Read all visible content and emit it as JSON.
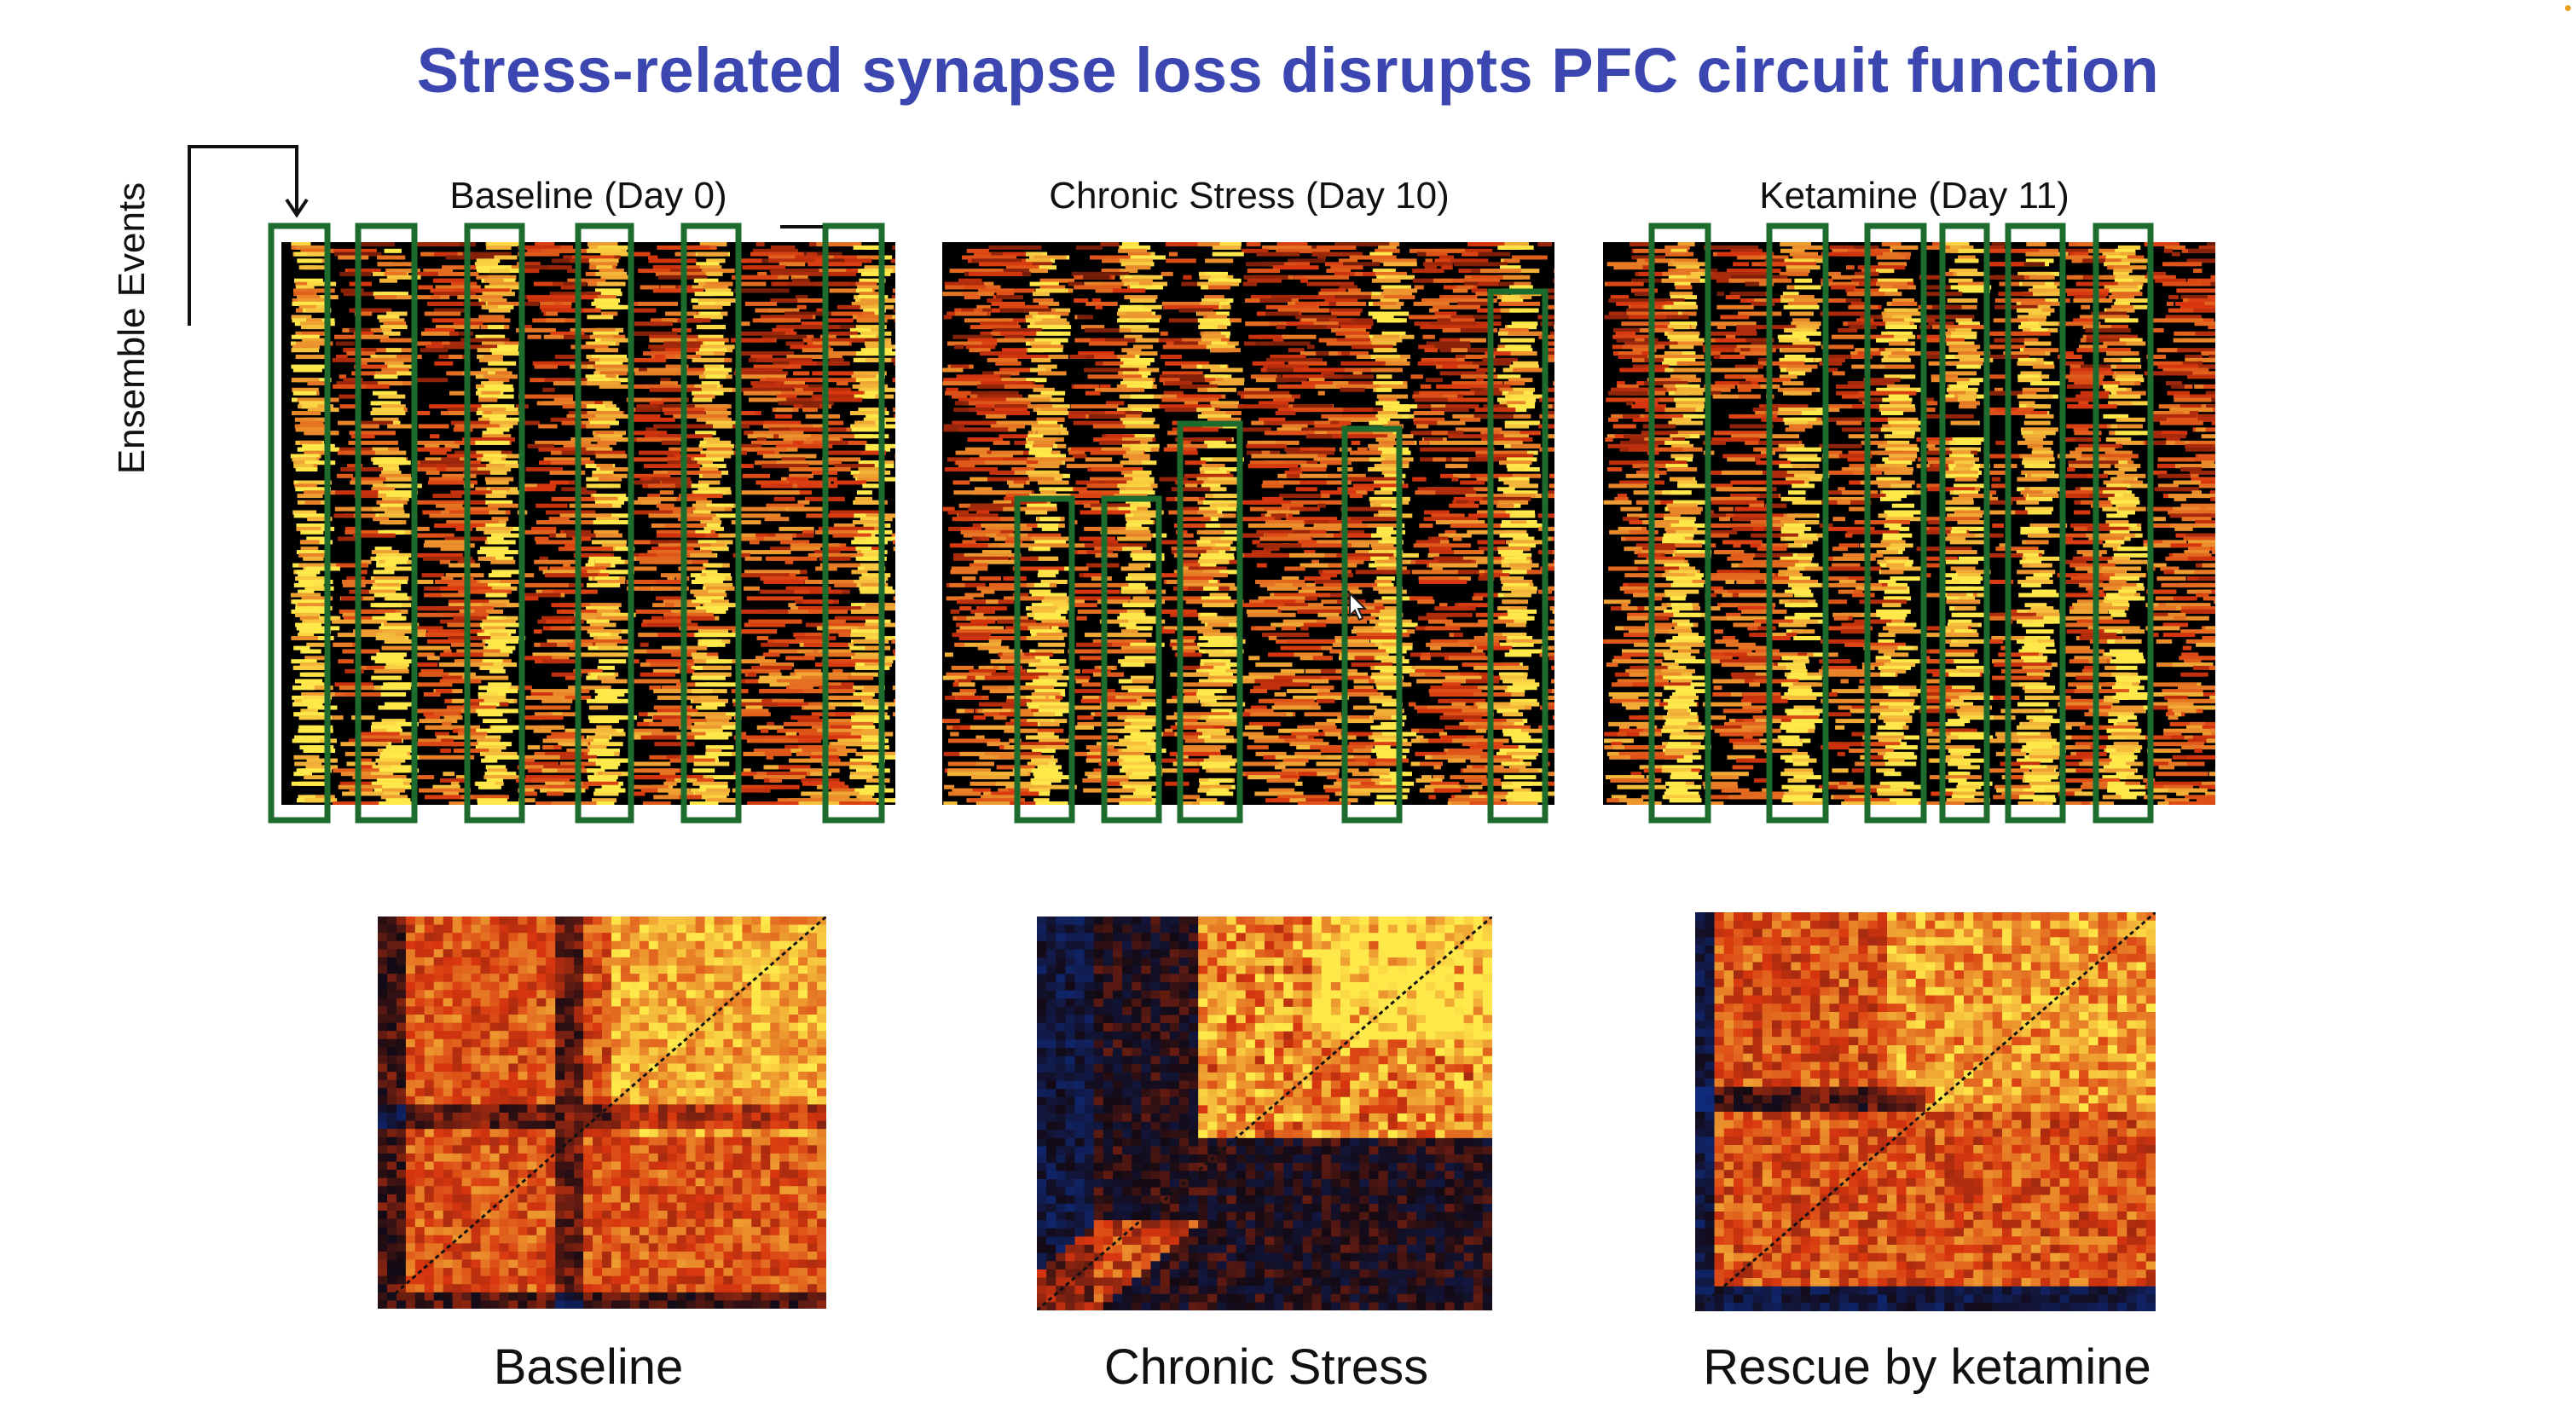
{
  "slide": {
    "title": "Stress-related synapse loss disrupts PFC circuit function",
    "y_axis_label": "Ensemble Events"
  },
  "raster_panels": [
    {
      "id": "baseline-day0",
      "label": "Baseline (Day 0)",
      "ensemble_boxes": 6
    },
    {
      "id": "chronic-stress-day10",
      "label": "Chronic Stress (Day 10)",
      "ensemble_boxes": 5
    },
    {
      "id": "ketamine-day11",
      "label": "Ketamine (Day 11)",
      "ensemble_boxes": 6
    }
  ],
  "correlation_panels": [
    {
      "id": "corr-baseline",
      "label": "Baseline"
    },
    {
      "id": "corr-chronic-stress",
      "label": "Chronic Stress"
    },
    {
      "id": "corr-rescue",
      "label": "Rescue by ketamine"
    }
  ],
  "colors": {
    "title": "#3b46b0",
    "box_outline": "#1e6b2e",
    "heat_low": "#000000",
    "heat_mid": "#d8360f",
    "heat_high": "#ffe94a",
    "corr_low": "#0f2a7a"
  },
  "icons": {
    "bracket_arrow": "bracket-arrow-icon",
    "cursor": "cursor-icon"
  }
}
